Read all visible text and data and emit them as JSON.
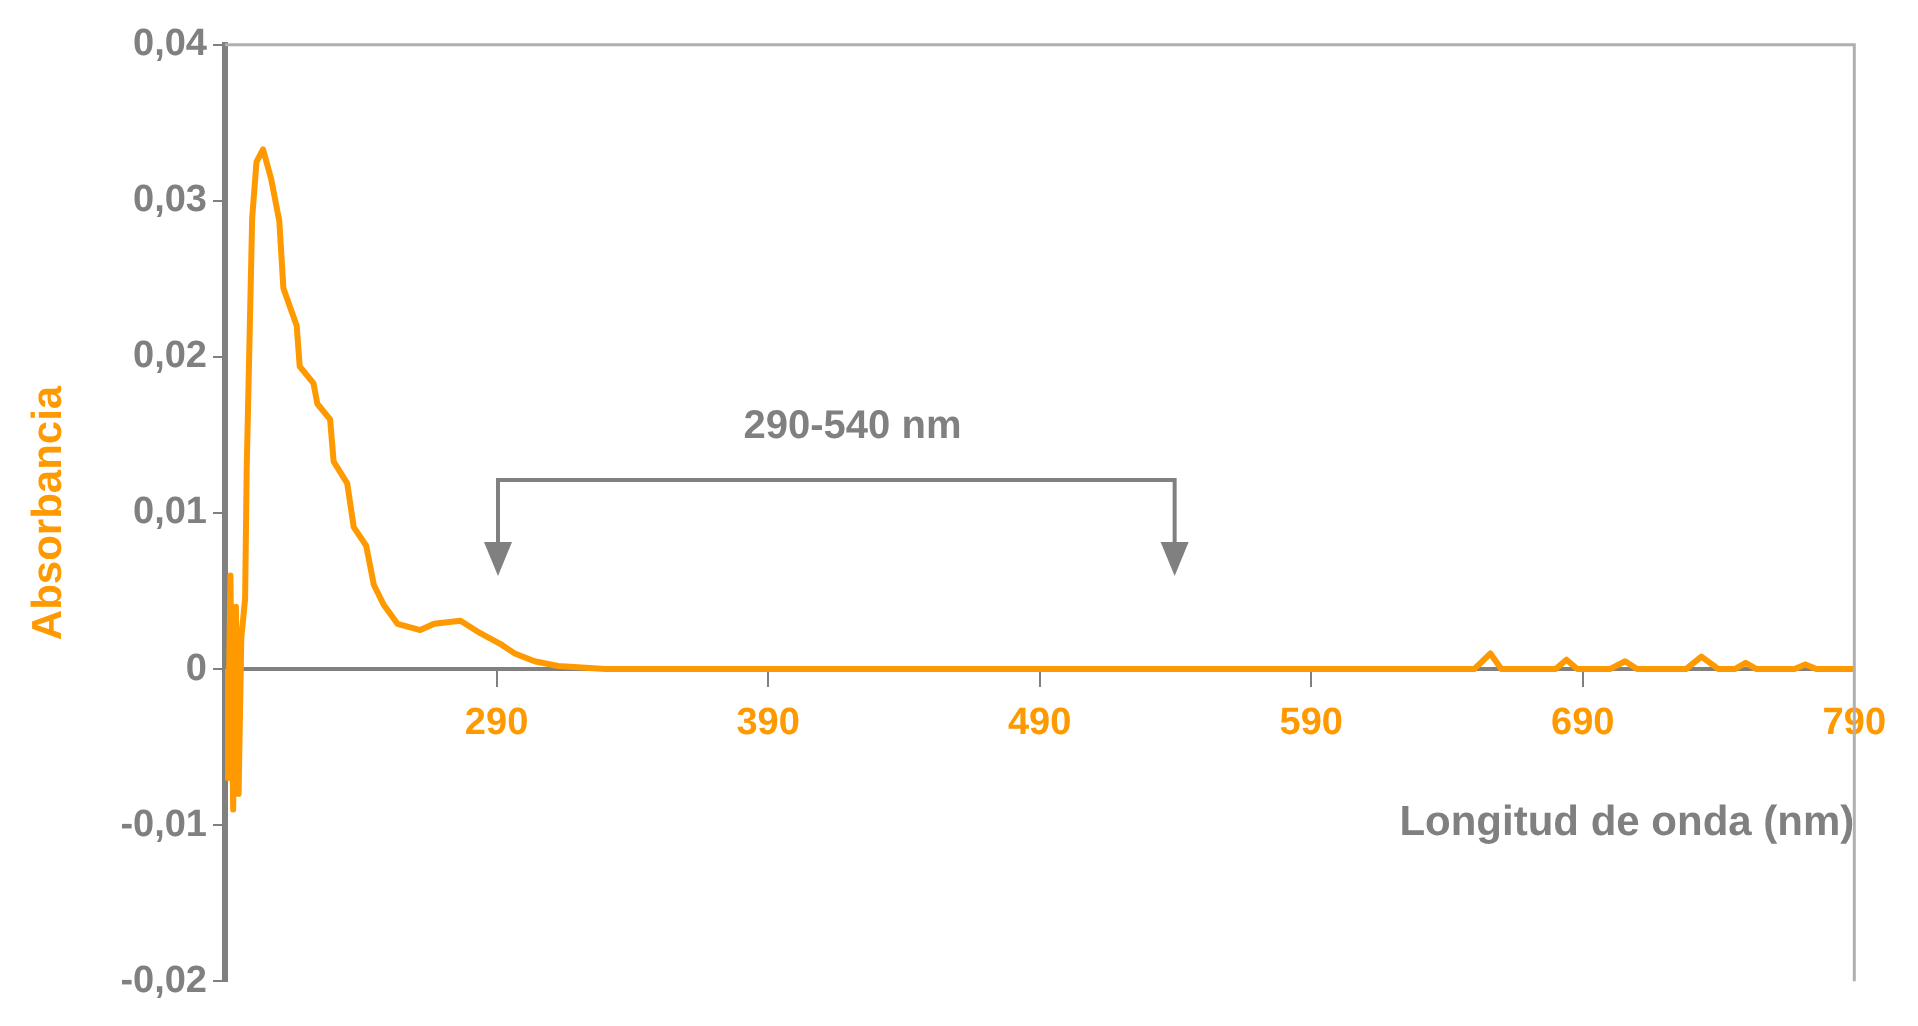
{
  "chart_data": {
    "type": "line",
    "xlabel": "Longitud de onda (nm)",
    "ylabel": "Absorbancia",
    "xlim": [
      190,
      790
    ],
    "xticks": [
      290,
      390,
      490,
      590,
      690,
      790
    ],
    "ylim": [
      -0.02,
      0.04
    ],
    "yticks": [
      {
        "value": -0.02,
        "label": "-0,02"
      },
      {
        "value": -0.01,
        "label": "-0,01"
      },
      {
        "value": 0,
        "label": "0"
      },
      {
        "value": 0.01,
        "label": "0,01"
      },
      {
        "value": 0.02,
        "label": "0,02"
      },
      {
        "value": 0.03,
        "label": "0,03"
      },
      {
        "value": 0.04,
        "label": "0,04"
      }
    ],
    "grid": false,
    "legend": false,
    "marker": "none",
    "line_style": "solid",
    "annotations": [
      "290-540 nm"
    ],
    "series": [
      {
        "color": "#ff9900",
        "x": [
          190,
          191,
          192,
          193,
          194,
          195,
          196,
          197.4,
          198,
          200,
          201.6,
          204,
          207,
          210,
          211.5,
          216.4,
          217.5,
          222.6,
          224,
          228.7,
          230,
          235,
          237.4,
          242,
          244.8,
          248.5,
          253.5,
          261.9,
          267,
          276.7,
          284,
          291.5,
          296.7,
          304,
          312.7,
          330,
          650,
          656,
          660,
          680,
          684,
          688,
          700,
          705.6,
          710,
          728,
          733.7,
          740,
          746,
          750,
          754,
          768,
          772,
          776,
          790
        ],
        "values": [
          0,
          -0.007,
          0.006,
          -0.009,
          0.004,
          -0.008,
          0.002,
          0.0045,
          0.0129,
          0.0289,
          0.0325,
          0.0333,
          0.0314,
          0.0287,
          0.0244,
          0.022,
          0.0194,
          0.0183,
          0.017,
          0.016,
          0.0133,
          0.0119,
          0.0091,
          0.0079,
          0.0054,
          0.0041,
          0.0029,
          0.0025,
          0.0029,
          0.0031,
          0.0023,
          0.0016,
          0.001,
          0.0005,
          0.0002,
          0,
          0,
          0.001,
          0,
          0,
          0.0006,
          0,
          0,
          0.0005,
          0,
          0,
          0.0008,
          0,
          0,
          0.0004,
          0,
          0,
          0.0003,
          0,
          0
        ]
      }
    ]
  }
}
